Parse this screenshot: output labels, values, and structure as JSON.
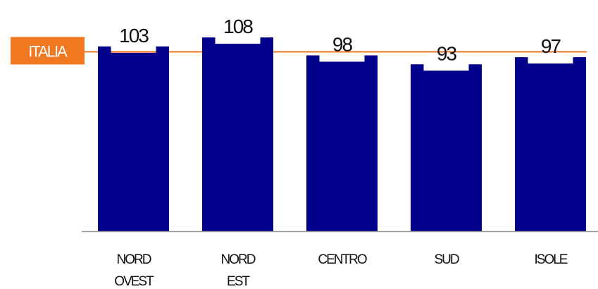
{
  "chart_data": {
    "type": "bar",
    "categories": [
      [
        "NORD",
        "OVEST"
      ],
      [
        "NORD",
        "EST"
      ],
      [
        "CENTRO"
      ],
      [
        "SUD"
      ],
      [
        "ISOLE"
      ]
    ],
    "values": [
      103,
      108,
      98,
      93,
      97
    ],
    "reference_line": {
      "label": "ITALIA",
      "value": 100
    },
    "ylim": [
      0,
      110
    ],
    "grid": false,
    "legend": "none",
    "colors": {
      "bar": "#00008b",
      "reference": "#f07820",
      "axis": "#999999"
    }
  }
}
